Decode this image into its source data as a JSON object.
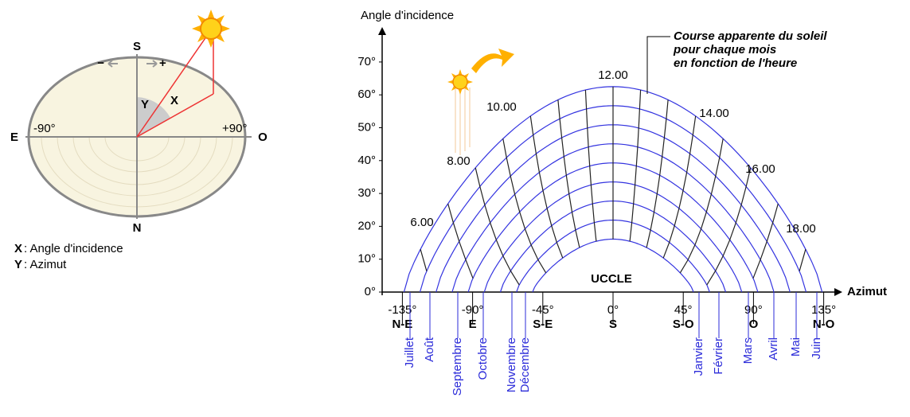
{
  "left_diagram": {
    "south": "S",
    "north": "N",
    "east": "E",
    "west": "O",
    "minus": "−",
    "plus": "+",
    "x_label": "X",
    "y_label": "Y",
    "left_angle": "-90°",
    "right_angle": "+90°",
    "legend": [
      {
        "key": "X",
        "text": ": Angle d'incidence"
      },
      {
        "key": "Y",
        "text": ": Azimut"
      }
    ]
  },
  "right_diagram": {
    "y_axis_title": "Angle d'incidence",
    "x_axis_title": "Azimut",
    "y_ticks": [
      "0°",
      "10°",
      "20°",
      "30°",
      "40°",
      "50°",
      "60°",
      "70°"
    ],
    "x_ticks": [
      "-135°",
      "-90°",
      "-45°",
      "0°",
      "45°",
      "90°",
      "135°"
    ],
    "directions": [
      "N-E",
      "E",
      "S-E",
      "S",
      "S-O",
      "O",
      "N-O"
    ],
    "months": [
      "Juillet",
      "Août",
      "Septembre",
      "Octobre",
      "Novembre",
      "Décembre",
      "Janvier",
      "Février",
      "Mars",
      "Avril",
      "Mai",
      "Juin"
    ],
    "hours": [
      "6.00",
      "8.00",
      "10.00",
      "12.00",
      "14.00",
      "16.00",
      "18.00"
    ],
    "location": "UCCLE",
    "note": [
      "Course apparente du soleil",
      "pour chaque mois",
      "en fonction de l'heure"
    ]
  }
}
